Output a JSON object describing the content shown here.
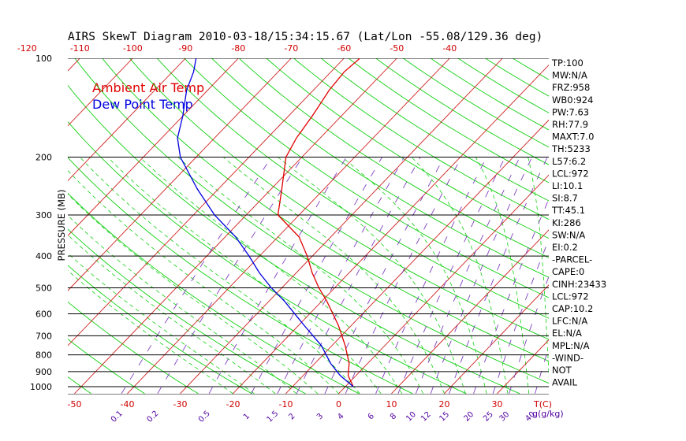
{
  "colors": {
    "background": "#ffffff",
    "text": "#000000",
    "temp_tick": "#d00000",
    "mixing_tick": "#5000a0",
    "isotherm": "#d02020",
    "dry_adiabat": "#10d010",
    "moist_adiabat": "#10d010",
    "mixing_ratio": "#8040c0",
    "temperature_line": "#e00000",
    "dewpoint_line": "#0000e0",
    "isobar": "#000000",
    "legend_temp": "#e00000",
    "legend_dew": "#0000e0"
  },
  "chart_data": {
    "type": "line",
    "title": "AIRS SkewT Diagram 2010-03-18/15:34:15.67 (Lat/Lon -55.08/129.36 deg)",
    "ylabel": "PRESSURE (MB)",
    "xlabel_bottom_right": "T(C)",
    "mixing_unit_label": "g(g/kg)",
    "y_scale": "log",
    "ylim": [
      1050,
      100
    ],
    "pressure_levels": [
      100,
      200,
      300,
      400,
      500,
      600,
      700,
      800,
      900,
      1000
    ],
    "pressure_tick_labels": [
      "100",
      "200",
      "300",
      "400",
      "500",
      "600",
      "700",
      "800",
      "900",
      "1000"
    ],
    "bottom_temp_ticks": [
      -50,
      -40,
      -30,
      -20,
      -10,
      0,
      10,
      20,
      30
    ],
    "bottom_temp_tick_labels": [
      "-50",
      "-40",
      "-30",
      "-20",
      "-10",
      "0",
      "10",
      "20",
      "30"
    ],
    "top_temp_ticks": [
      -120,
      -110,
      -100,
      -90,
      -80,
      -70,
      -60,
      -50,
      -40
    ],
    "top_temp_tick_labels": [
      "-120",
      "-110",
      "-100",
      "-90",
      "-80",
      "-70",
      "-60",
      "-50",
      "-40"
    ],
    "mixing_ratio_values": [
      0.1,
      0.2,
      0.5,
      1,
      1.5,
      2,
      3,
      4,
      6,
      8,
      10,
      12,
      15,
      20,
      25,
      30,
      40
    ],
    "mixing_ratio_labels": [
      "0.1",
      "0.2",
      "0.5",
      "1",
      "1.5",
      "2",
      "3",
      "4",
      "6",
      "8",
      "10",
      "12",
      "15",
      "20",
      "25",
      "30",
      "40"
    ],
    "series": [
      {
        "name": "Ambient Air Temp",
        "color": "#e00000",
        "points": [
          {
            "p": 1000,
            "t": 1.5
          },
          {
            "p": 925,
            "t": -1.5
          },
          {
            "p": 850,
            "t": -3.5
          },
          {
            "p": 750,
            "t": -7.5
          },
          {
            "p": 650,
            "t": -12.5
          },
          {
            "p": 550,
            "t": -19
          },
          {
            "p": 500,
            "t": -23
          },
          {
            "p": 450,
            "t": -27
          },
          {
            "p": 400,
            "t": -31
          },
          {
            "p": 350,
            "t": -36
          },
          {
            "p": 300,
            "t": -44
          },
          {
            "p": 250,
            "t": -48
          },
          {
            "p": 200,
            "t": -53
          },
          {
            "p": 175,
            "t": -54.5
          },
          {
            "p": 150,
            "t": -55.5
          },
          {
            "p": 125,
            "t": -57
          },
          {
            "p": 110,
            "t": -57.5
          },
          {
            "p": 100,
            "t": -57
          }
        ]
      },
      {
        "name": "Dew Point Temp",
        "color": "#0000e0",
        "points": [
          {
            "p": 1000,
            "t": 1.5
          },
          {
            "p": 925,
            "t": -3
          },
          {
            "p": 850,
            "t": -7
          },
          {
            "p": 750,
            "t": -12
          },
          {
            "p": 650,
            "t": -19
          },
          {
            "p": 550,
            "t": -27
          },
          {
            "p": 500,
            "t": -32
          },
          {
            "p": 450,
            "t": -37
          },
          {
            "p": 400,
            "t": -42
          },
          {
            "p": 350,
            "t": -48
          },
          {
            "p": 300,
            "t": -56
          },
          {
            "p": 250,
            "t": -64
          },
          {
            "p": 200,
            "t": -73
          },
          {
            "p": 175,
            "t": -77
          },
          {
            "p": 150,
            "t": -80
          },
          {
            "p": 125,
            "t": -84
          },
          {
            "p": 110,
            "t": -86
          },
          {
            "p": 100,
            "t": -88
          }
        ]
      }
    ],
    "legend": [
      "Ambient Air Temp",
      "Dew Point Temp"
    ],
    "legend_placement": "top-left",
    "grid": true
  },
  "indices": [
    "TP:100",
    "MW:N/A",
    "FRZ:958",
    "WB0:924",
    "PW:7.63",
    "RH:77.9",
    "MAXT:7.0",
    "TH:5233",
    "L57:6.2",
    "LCL:972",
    "LI:10.1",
    "SI:8.7",
    "TT:45.1",
    "KI:286",
    "SW:N/A",
    "EI:0.2",
    "-PARCEL-",
    "CAPE:0",
    "CINH:23433",
    "LCL:972",
    "CAP:10.2",
    "LFC:N/A",
    "EL:N/A",
    "MPL:N/A",
    "-WIND-",
    "NOT",
    "AVAIL"
  ]
}
